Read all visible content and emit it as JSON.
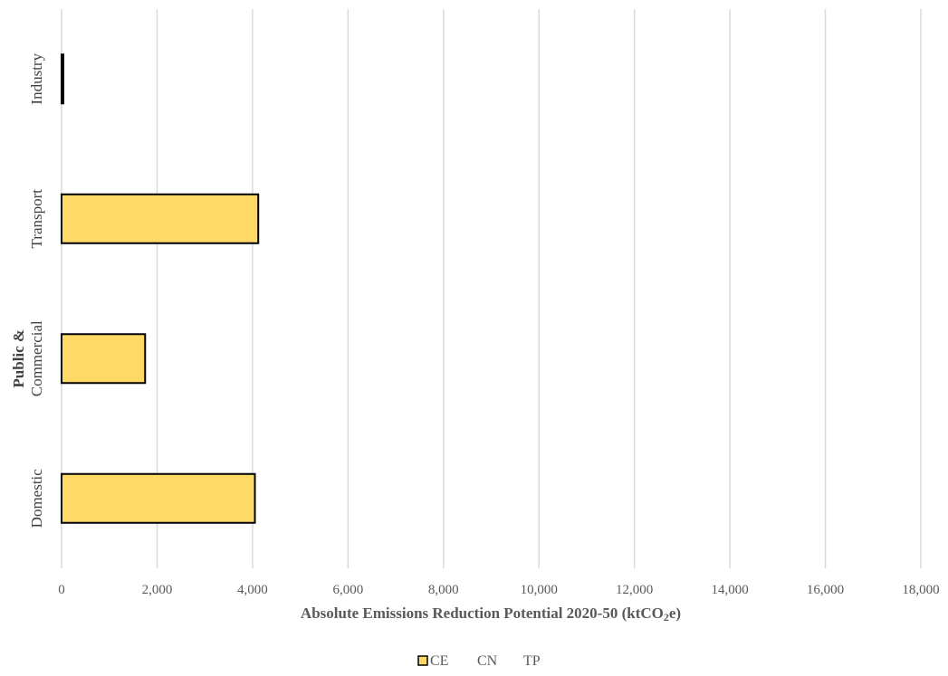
{
  "chart_data": {
    "type": "bar",
    "orientation": "horizontal",
    "categories": [
      "Domestic",
      "Public & Commercial",
      "Transport",
      "Industry"
    ],
    "category_lines": [
      [
        "Domestic"
      ],
      [
        "Public &",
        "Commercial"
      ],
      [
        "Transport"
      ],
      [
        "Industry"
      ]
    ],
    "series": [
      {
        "name": "CE",
        "values": [
          4050,
          1750,
          4120,
          30
        ],
        "color": "#FFD966"
      },
      {
        "name": "CN",
        "values": [
          0,
          0,
          0,
          0
        ],
        "color": "#FFFFFF"
      },
      {
        "name": "TP",
        "values": [
          0,
          0,
          0,
          0
        ],
        "color": "#FFFFFF"
      }
    ],
    "xlim": [
      0,
      18000
    ],
    "xticks": [
      0,
      2000,
      4000,
      6000,
      8000,
      10000,
      12000,
      14000,
      16000,
      18000
    ],
    "xtick_labels": [
      "0",
      "2,000",
      "4,000",
      "6,000",
      "8,000",
      "10,000",
      "12,000",
      "14,000",
      "16,000",
      "18,000"
    ],
    "xlabel": "Absolute Emissions Reduction Potential 2020-50 (ktCO2e)",
    "ylabel": "",
    "title": "",
    "grid": "vertical",
    "legend_position": "bottom",
    "bar_outline_color": "#000000",
    "grid_color": "#D9D9D9"
  }
}
